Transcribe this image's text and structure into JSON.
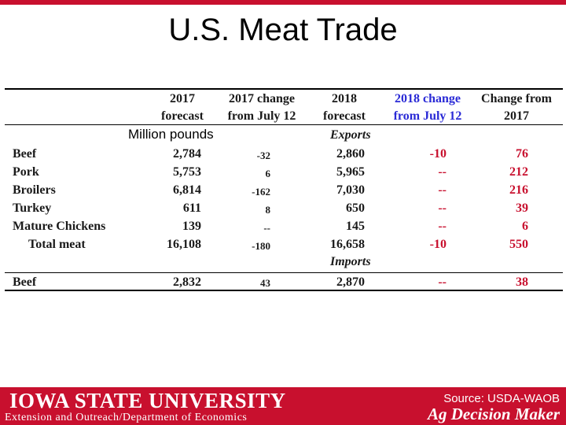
{
  "slide": {
    "title": "U.S. Meat Trade"
  },
  "table": {
    "headers": [
      {
        "line1": "2017",
        "line2": "forecast"
      },
      {
        "line1": "2017 change",
        "line2": "from July 12"
      },
      {
        "line1": "2018",
        "line2": "forecast"
      },
      {
        "line1": "2018 change",
        "line2": "from July 12"
      },
      {
        "line1": "Change from",
        "line2": "2017"
      }
    ],
    "unit": "Million pounds",
    "sections": {
      "exports": "Exports",
      "imports": "Imports"
    },
    "rows": [
      {
        "label": "Beef",
        "f2017": "2,784",
        "ch2017": "-32",
        "f2018": "2,860",
        "ch2018": "-10",
        "chfrom": "76"
      },
      {
        "label": "Pork",
        "f2017": "5,753",
        "ch2017": "6",
        "f2018": "5,965",
        "ch2018": "--",
        "chfrom": "212"
      },
      {
        "label": "Broilers",
        "f2017": "6,814",
        "ch2017": "-162",
        "f2018": "7,030",
        "ch2018": "--",
        "chfrom": "216"
      },
      {
        "label": "Turkey",
        "f2017": "611",
        "ch2017": "8",
        "f2018": "650",
        "ch2018": "--",
        "chfrom": "39"
      },
      {
        "label": "Mature Chickens",
        "f2017": "139",
        "ch2017": "--",
        "f2018": "145",
        "ch2018": "--",
        "chfrom": "6"
      },
      {
        "label": "Total meat",
        "f2017": "16,108",
        "ch2017": "-180",
        "f2018": "16,658",
        "ch2018": "-10",
        "chfrom": "550"
      }
    ],
    "import_row": {
      "label": "Beef",
      "f2017": "2,832",
      "ch2017": "43",
      "f2018": "2,870",
      "ch2018": "--",
      "chfrom": "38"
    }
  },
  "footer": {
    "university": "IOWA STATE UNIVERSITY",
    "department": "Extension and Outreach/Department of Economics",
    "source": "Source: USDA-WAOB",
    "brand": "Ag Decision Maker"
  },
  "colors": {
    "accent": "#c8102e",
    "blue_header": "#2a2ad6"
  }
}
